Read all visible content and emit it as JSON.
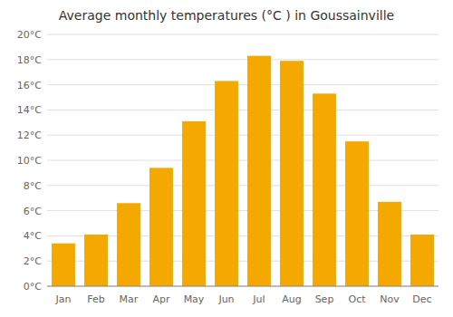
{
  "chart_data": {
    "type": "bar",
    "title": "Average monthly temperatures (°C ) in Goussainville",
    "categories": [
      "Jan",
      "Feb",
      "Mar",
      "Apr",
      "May",
      "Jun",
      "Jul",
      "Aug",
      "Sep",
      "Oct",
      "Nov",
      "Dec"
    ],
    "values": [
      3.4,
      4.1,
      6.6,
      9.4,
      13.1,
      16.3,
      18.3,
      17.9,
      15.3,
      11.5,
      6.7,
      4.1
    ],
    "color": "#F5A800",
    "ylim": [
      0,
      20
    ],
    "yticks": [
      {
        "value": 0,
        "label": "0°C"
      },
      {
        "value": 2,
        "label": "2°C"
      },
      {
        "value": 4,
        "label": "4°C"
      },
      {
        "value": 6,
        "label": "6°C"
      },
      {
        "value": 8,
        "label": "8°C"
      },
      {
        "value": 10,
        "label": "10°C"
      },
      {
        "value": 12,
        "label": "12°C"
      },
      {
        "value": 14,
        "label": "14°C"
      },
      {
        "value": 16,
        "label": "16°C"
      },
      {
        "value": 18,
        "label": "18°C"
      },
      {
        "value": 20,
        "label": "20°C"
      }
    ],
    "grid": true
  }
}
